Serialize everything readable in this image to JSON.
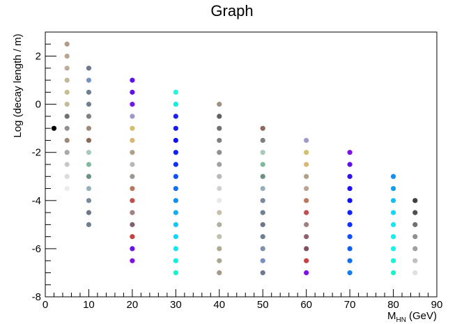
{
  "chart_data": {
    "type": "scatter",
    "title": "Graph",
    "x_label": {
      "symbol": "M",
      "subscript": "HN",
      "unit": "(GeV)"
    },
    "y_label": "Log (decay length / m)",
    "xlim": [
      0,
      90
    ],
    "xticks": [
      0,
      10,
      20,
      30,
      40,
      50,
      60,
      70,
      80,
      90
    ],
    "ylim": [
      -8,
      3
    ],
    "yticks": [
      -8,
      -6,
      -4,
      -2,
      0,
      2
    ],
    "series": [
      {
        "x": [
          2
        ],
        "values": [
          -1
        ],
        "colors": [
          "#000000"
        ]
      },
      {
        "x": [
          5,
          5,
          5,
          5,
          5,
          5,
          5,
          5,
          5,
          5,
          5,
          5,
          5
        ],
        "values": [
          2.5,
          2,
          1.5,
          1,
          0.5,
          0,
          -0.5,
          -1,
          -1.5,
          -2,
          -2.5,
          -3,
          -3.5
        ],
        "colors": [
          "#b09a8a",
          "#b8a490",
          "#bcae98",
          "#c0b898",
          "#c8bc90",
          "#c4bc98",
          "#707070",
          "#909090",
          "#a08878",
          "#a8a8a8",
          "#c8c8c8",
          "#dcdcdc",
          "#ececec"
        ]
      },
      {
        "x": [
          10,
          10,
          10,
          10,
          10,
          10,
          10,
          10,
          10,
          10,
          10,
          10,
          10,
          10
        ],
        "values": [
          1.5,
          1,
          0.5,
          0,
          -0.5,
          -1,
          -1.5,
          -2,
          -2.5,
          -3,
          -3.5,
          -4,
          -4.5,
          -5
        ],
        "colors": [
          "#707890",
          "#7a90c0",
          "#708090",
          "#708090",
          "#808080",
          "#a08a80",
          "#8a6a5a",
          "#a8c8b8",
          "#80b8a0",
          "#709080",
          "#98b0b8",
          "#7a8a98",
          "#707888",
          "#708090"
        ]
      },
      {
        "x": [
          20,
          20,
          20,
          20,
          20,
          20,
          20,
          20,
          20,
          20,
          20,
          20,
          20,
          20,
          20,
          20
        ],
        "values": [
          1,
          0.5,
          0,
          -0.5,
          -1,
          -1.5,
          -2,
          -2.5,
          -3,
          -3.5,
          -4,
          -4.5,
          -5,
          -5.5,
          -6,
          -6.5
        ],
        "colors": [
          "#5a10f0",
          "#6010e8",
          "#7018e8",
          "#a098c8",
          "#d0c070",
          "#d8b878",
          "#b0a088",
          "#b8b8b8",
          "#a09890",
          "#b87860",
          "#c05050",
          "#a08080",
          "#806070",
          "#c84040",
          "#6a10e8",
          "#8010e0"
        ]
      },
      {
        "x": [
          30,
          30,
          30,
          30,
          30,
          30,
          30,
          30,
          30,
          30,
          30,
          30,
          30,
          30,
          30,
          30
        ],
        "values": [
          0.5,
          0,
          -0.5,
          -1,
          -1.5,
          -2,
          -2.5,
          -3,
          -3.5,
          -4,
          -4.5,
          -5,
          -5.5,
          -6,
          -6.5,
          -7
        ],
        "colors": [
          "#20f8e0",
          "#10f0e0",
          "#2020f0",
          "#1818f8",
          "#1010ff",
          "#1020ff",
          "#1030ff",
          "#1050ff",
          "#1070f8",
          "#1090f0",
          "#10b0f0",
          "#10c8f8",
          "#10d8f8",
          "#10e8f0",
          "#10f0e0",
          "#10f8d0"
        ]
      },
      {
        "x": [
          40,
          40,
          40,
          40,
          40,
          40,
          40,
          40,
          40,
          40,
          40,
          40,
          40,
          40,
          40
        ],
        "values": [
          0,
          -0.5,
          -1,
          -1.5,
          -2,
          -2.5,
          -3,
          -3.5,
          -4,
          -4.5,
          -5,
          -5.5,
          -6,
          -6.5,
          -7
        ],
        "colors": [
          "#a09080",
          "#606060",
          "#707070",
          "#808080",
          "#909090",
          "#a0a0a0",
          "#b8b8b8",
          "#d0d0d0",
          "#e8e8e8",
          "#c8c0a8",
          "#b0b0a0",
          "#c0c0b0",
          "#b0a890",
          "#a8a890",
          "#a89888"
        ]
      },
      {
        "x": [
          50,
          50,
          50,
          50,
          50,
          50,
          50,
          50,
          50,
          50,
          50,
          50,
          50
        ],
        "values": [
          -1,
          -1.5,
          -2,
          -2.5,
          -3,
          -3.5,
          -4,
          -4.5,
          -5,
          -5.5,
          -6,
          -6.5,
          -7
        ],
        "colors": [
          "#8a6a5a",
          "#808080",
          "#a8c8b8",
          "#80b8a0",
          "#709080",
          "#98b0b8",
          "#7a8a98",
          "#708090",
          "#6a7888",
          "#708090",
          "#8090a8",
          "#7a90c0",
          "#707890"
        ]
      },
      {
        "x": [
          60,
          60,
          60,
          60,
          60,
          60,
          60,
          60,
          60,
          60,
          60,
          60
        ],
        "values": [
          -1.5,
          -2,
          -2.5,
          -3,
          -3.5,
          -4,
          -4.5,
          -5,
          -5.5,
          -6,
          -6.5,
          -7
        ],
        "colors": [
          "#a098c8",
          "#d0c070",
          "#d8b878",
          "#b0a088",
          "#b8a490",
          "#b87860",
          "#c05050",
          "#a08080",
          "#906070",
          "#805060",
          "#c84040",
          "#8010e0"
        ]
      },
      {
        "x": [
          70,
          70,
          70,
          70,
          70,
          70,
          70,
          70,
          70,
          70,
          70
        ],
        "values": [
          -2,
          -2.5,
          -3,
          -3.5,
          -4,
          -4.5,
          -5,
          -5.5,
          -6,
          -6.5,
          -7
        ],
        "colors": [
          "#8010e8",
          "#6010e8",
          "#3010f0",
          "#2010f8",
          "#1010ff",
          "#1020ff",
          "#1030ff",
          "#1050f8",
          "#1060f0",
          "#1070f0",
          "#1080f0"
        ]
      },
      {
        "x": [
          80,
          80,
          80,
          80,
          80,
          80,
          80,
          80,
          80
        ],
        "values": [
          -3,
          -3.5,
          -4,
          -4.5,
          -5,
          -5.5,
          -6,
          -6.5,
          -7
        ],
        "colors": [
          "#1090f0",
          "#10a0f0",
          "#10c0f8",
          "#10d8f8",
          "#10e8f8",
          "#10f0f0",
          "#10f8e8",
          "#10f8d8",
          "#10f8c8"
        ]
      },
      {
        "x": [
          85,
          85,
          85,
          85,
          85,
          85,
          85
        ],
        "values": [
          -4,
          -4.5,
          -5,
          -5.5,
          -6,
          -6.5,
          -7
        ],
        "colors": [
          "#404040",
          "#505050",
          "#707070",
          "#909090",
          "#a0a0a0",
          "#c0c0c0",
          "#e0e0e0"
        ]
      }
    ]
  }
}
